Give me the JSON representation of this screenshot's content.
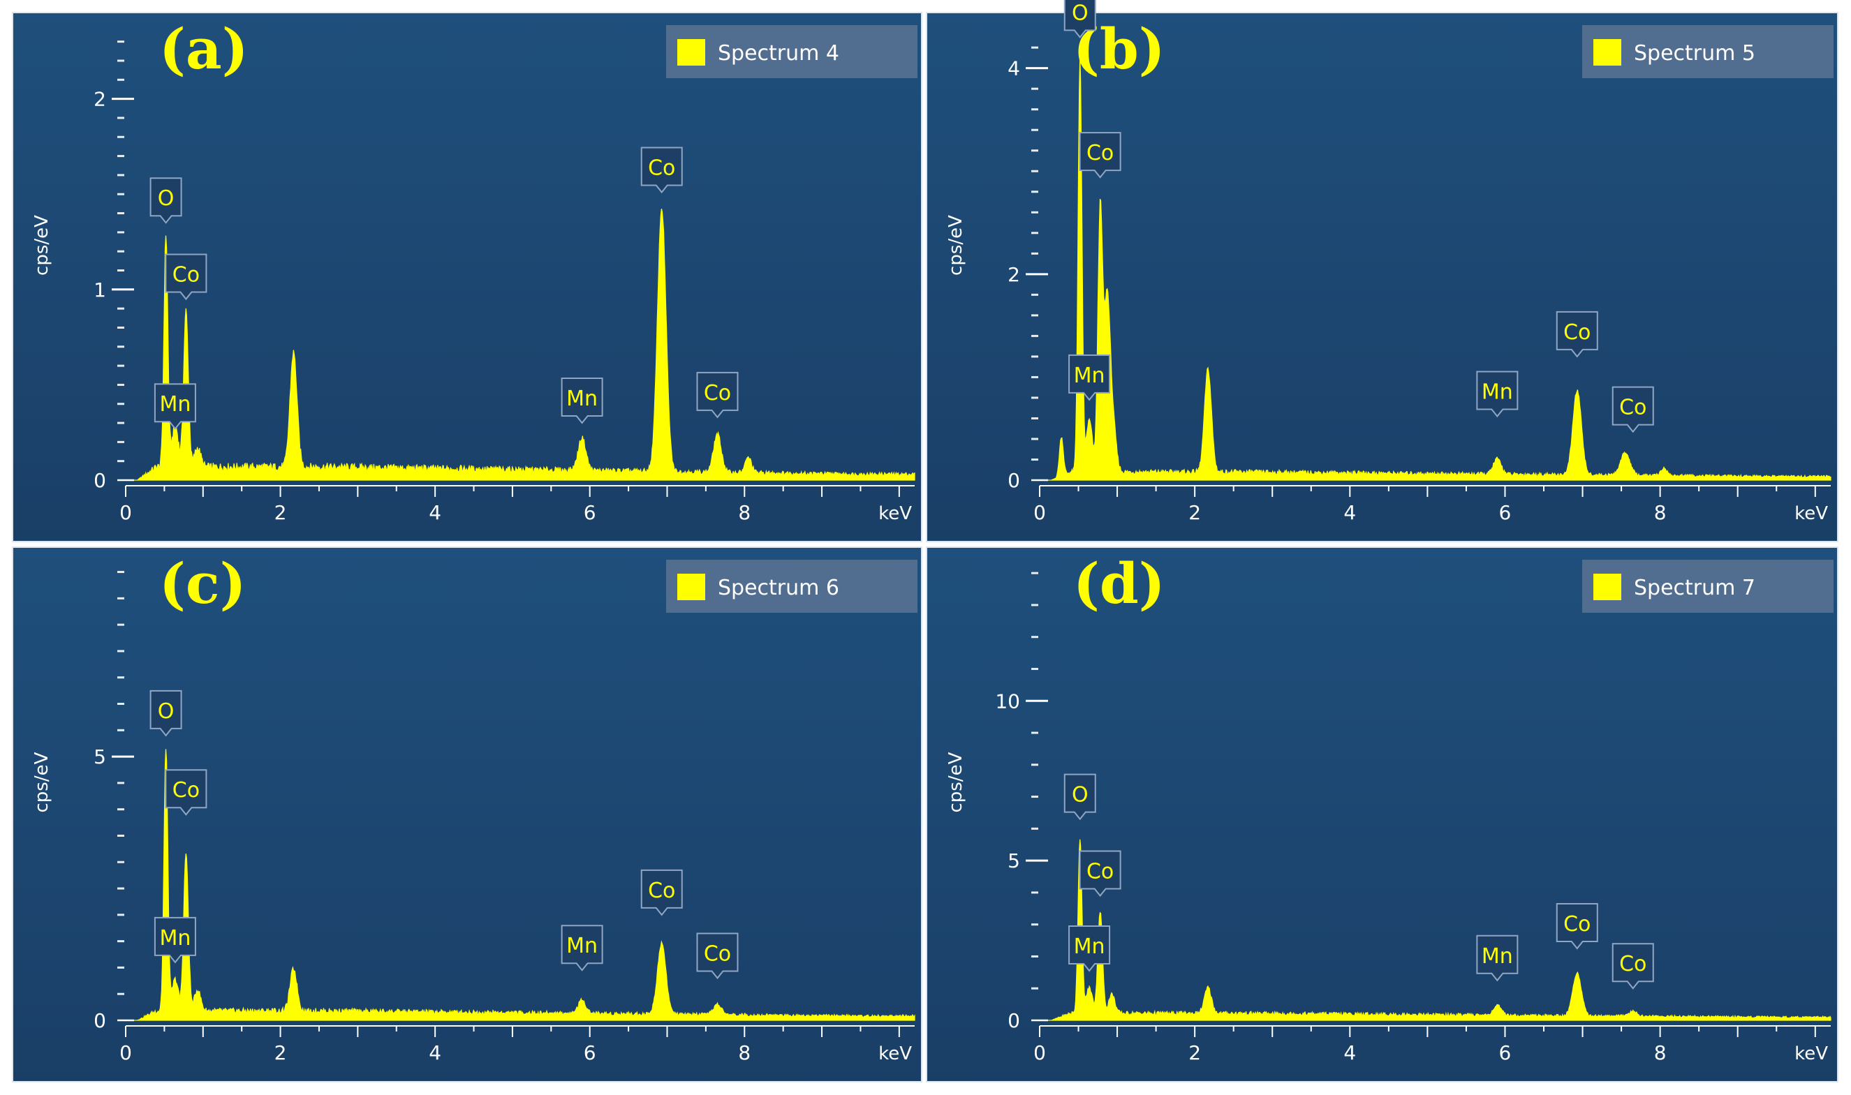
{
  "theme": {
    "panel_bg_top": "#1f4f7c",
    "panel_bg_bottom": "#1a3f67",
    "spectrum_color": "#ffff00",
    "axis_color": "#ffffff",
    "label_box_fill": "#1d3f66",
    "label_box_stroke": "#8fa7c4",
    "legend_fill": "#5b7393"
  },
  "chart_data": [
    {
      "type": "area",
      "panel_letter": "(a)",
      "legend": "Spectrum 4",
      "xlabel": "keV",
      "ylabel": "cps/eV",
      "xlim": [
        0,
        10.2
      ],
      "ylim": [
        0,
        2.35
      ],
      "xticks": [
        0,
        2,
        4,
        6,
        8
      ],
      "yticks": [
        0,
        1,
        2
      ],
      "minor_ytick_step": 0.1,
      "background": 0.07,
      "peaks": [
        {
          "x": 0.52,
          "h": 1.22,
          "w": 0.025
        },
        {
          "x": 0.78,
          "h": 0.82,
          "w": 0.03
        },
        {
          "x": 0.64,
          "h": 0.22,
          "w": 0.04
        },
        {
          "x": 0.93,
          "h": 0.1,
          "w": 0.04
        },
        {
          "x": 2.17,
          "h": 0.6,
          "w": 0.045
        },
        {
          "x": 5.9,
          "h": 0.17,
          "w": 0.05
        },
        {
          "x": 6.93,
          "h": 1.38,
          "w": 0.055
        },
        {
          "x": 7.65,
          "h": 0.2,
          "w": 0.05
        },
        {
          "x": 8.05,
          "h": 0.08,
          "w": 0.04
        }
      ],
      "labels": [
        {
          "text": "O",
          "x": 0.52,
          "y": 1.35
        },
        {
          "text": "Co",
          "x": 0.78,
          "y": 0.95
        },
        {
          "text": "Mn",
          "x": 0.64,
          "y": 0.27
        },
        {
          "text": "Mn",
          "x": 5.9,
          "y": 0.3
        },
        {
          "text": "Co",
          "x": 6.93,
          "y": 1.51
        },
        {
          "text": "Co",
          "x": 7.65,
          "y": 0.33
        }
      ]
    },
    {
      "type": "area",
      "panel_letter": "(b)",
      "legend": "Spectrum 5",
      "xlabel": "keV",
      "ylabel": "cps/eV",
      "xlim": [
        0,
        10.2
      ],
      "ylim": [
        0,
        4.35
      ],
      "xticks": [
        0,
        2,
        4,
        6,
        8
      ],
      "yticks": [
        0,
        2,
        4
      ],
      "minor_ytick_step": 0.2,
      "background": 0.08,
      "peaks": [
        {
          "x": 0.28,
          "h": 0.38,
          "w": 0.025
        },
        {
          "x": 0.52,
          "h": 4.0,
          "w": 0.025
        },
        {
          "x": 0.64,
          "h": 0.5,
          "w": 0.04
        },
        {
          "x": 0.78,
          "h": 2.5,
          "w": 0.03
        },
        {
          "x": 0.87,
          "h": 1.7,
          "w": 0.04
        },
        {
          "x": 0.95,
          "h": 0.4,
          "w": 0.04
        },
        {
          "x": 2.17,
          "h": 1.0,
          "w": 0.045
        },
        {
          "x": 5.9,
          "h": 0.15,
          "w": 0.05
        },
        {
          "x": 6.93,
          "h": 0.82,
          "w": 0.055
        },
        {
          "x": 7.55,
          "h": 0.22,
          "w": 0.06
        },
        {
          "x": 8.05,
          "h": 0.07,
          "w": 0.04
        }
      ],
      "labels": [
        {
          "text": "O",
          "x": 0.52,
          "y": 4.3
        },
        {
          "text": "Co",
          "x": 0.78,
          "y": 2.94
        },
        {
          "text": "Mn",
          "x": 0.64,
          "y": 0.78
        },
        {
          "text": "Mn",
          "x": 5.9,
          "y": 0.62
        },
        {
          "text": "Co",
          "x": 6.93,
          "y": 1.2
        },
        {
          "text": "Co",
          "x": 7.65,
          "y": 0.47
        }
      ]
    },
    {
      "type": "area",
      "panel_letter": "(c)",
      "legend": "Spectrum 6",
      "xlabel": "keV",
      "ylabel": "cps/eV",
      "xlim": [
        0,
        10.2
      ],
      "ylim": [
        0,
        8.6
      ],
      "xticks": [
        0,
        2,
        4,
        6,
        8
      ],
      "yticks": [
        0,
        5
      ],
      "minor_ytick_step": 0.5,
      "background": 0.18,
      "peaks": [
        {
          "x": 0.52,
          "h": 5.0,
          "w": 0.025
        },
        {
          "x": 0.64,
          "h": 0.6,
          "w": 0.04
        },
        {
          "x": 0.78,
          "h": 3.0,
          "w": 0.03
        },
        {
          "x": 0.93,
          "h": 0.4,
          "w": 0.04
        },
        {
          "x": 2.17,
          "h": 0.8,
          "w": 0.045
        },
        {
          "x": 5.9,
          "h": 0.25,
          "w": 0.05
        },
        {
          "x": 6.93,
          "h": 1.35,
          "w": 0.055
        },
        {
          "x": 7.65,
          "h": 0.2,
          "w": 0.05
        }
      ],
      "labels": [
        {
          "text": "O",
          "x": 0.52,
          "y": 5.4
        },
        {
          "text": "Co",
          "x": 0.78,
          "y": 3.9
        },
        {
          "text": "Mn",
          "x": 0.64,
          "y": 1.1
        },
        {
          "text": "Mn",
          "x": 5.9,
          "y": 0.95
        },
        {
          "text": "Co",
          "x": 6.93,
          "y": 2.0
        },
        {
          "text": "Co",
          "x": 7.65,
          "y": 0.8
        }
      ]
    },
    {
      "type": "area",
      "panel_letter": "(d)",
      "legend": "Spectrum 7",
      "xlabel": "keV",
      "ylabel": "cps/eV",
      "xlim": [
        0,
        10.2
      ],
      "ylim": [
        0,
        14.2
      ],
      "xticks": [
        0,
        2,
        4,
        6,
        8
      ],
      "yticks": [
        0,
        5,
        10
      ],
      "minor_ytick_step": 1,
      "background": 0.22,
      "peaks": [
        {
          "x": 0.52,
          "h": 5.5,
          "w": 0.025
        },
        {
          "x": 0.64,
          "h": 0.8,
          "w": 0.04
        },
        {
          "x": 0.78,
          "h": 3.2,
          "w": 0.03
        },
        {
          "x": 0.93,
          "h": 0.6,
          "w": 0.04
        },
        {
          "x": 2.17,
          "h": 0.8,
          "w": 0.045
        },
        {
          "x": 5.9,
          "h": 0.3,
          "w": 0.05
        },
        {
          "x": 6.93,
          "h": 1.35,
          "w": 0.055
        },
        {
          "x": 7.65,
          "h": 0.15,
          "w": 0.05
        }
      ],
      "labels": [
        {
          "text": "O",
          "x": 0.52,
          "y": 6.3
        },
        {
          "text": "Co",
          "x": 0.78,
          "y": 3.9
        },
        {
          "text": "Mn",
          "x": 0.64,
          "y": 1.55
        },
        {
          "text": "Mn",
          "x": 5.9,
          "y": 1.25
        },
        {
          "text": "Co",
          "x": 6.93,
          "y": 2.25
        },
        {
          "text": "Co",
          "x": 7.65,
          "y": 1.0
        }
      ]
    }
  ]
}
